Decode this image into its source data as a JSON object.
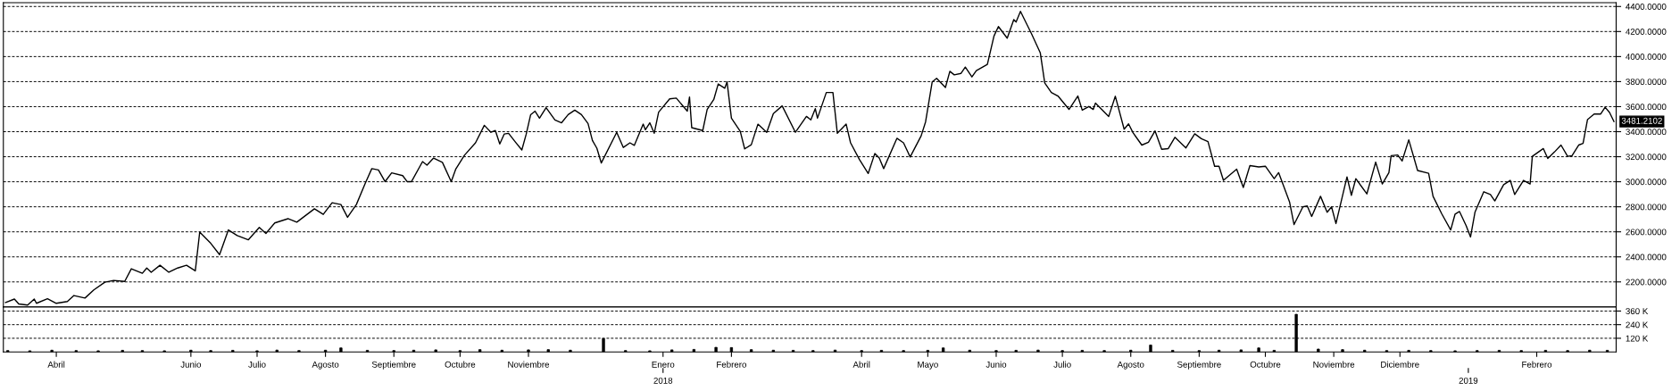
{
  "chart_data": [
    {
      "type": "line",
      "grid": "y",
      "tick_labels": "y",
      "line_style": "solid",
      "x": [
        "2017-03-09",
        "2017-03-13",
        "2017-03-15",
        "2017-03-19",
        "2017-03-22",
        "2017-03-23",
        "2017-03-28",
        "2017-04-01",
        "2017-04-06",
        "2017-04-09",
        "2017-04-14",
        "2017-04-18",
        "2017-04-23",
        "2017-04-27",
        "2017-05-02",
        "2017-05-05",
        "2017-05-10",
        "2017-05-12",
        "2017-05-14",
        "2017-05-18",
        "2017-05-22",
        "2017-05-26",
        "2017-05-30",
        "2017-06-03",
        "2017-06-05",
        "2017-06-10",
        "2017-06-14",
        "2017-06-18",
        "2017-06-22",
        "2017-06-27",
        "2017-07-02",
        "2017-07-05",
        "2017-07-09",
        "2017-07-15",
        "2017-07-19",
        "2017-07-27",
        "2017-07-31",
        "2017-08-04",
        "2017-08-08",
        "2017-08-11",
        "2017-08-15",
        "2017-08-19",
        "2017-08-22",
        "2017-08-25",
        "2017-08-28",
        "2017-08-31",
        "2017-09-05",
        "2017-09-07",
        "2017-09-09",
        "2017-09-14",
        "2017-09-16",
        "2017-09-19",
        "2017-09-23",
        "2017-09-27",
        "2017-09-29",
        "2017-10-03",
        "2017-10-08",
        "2017-10-12",
        "2017-10-15",
        "2017-10-17",
        "2017-10-19",
        "2017-10-21",
        "2017-10-23",
        "2017-10-26",
        "2017-10-29",
        "2017-10-31",
        "2017-11-02",
        "2017-11-04",
        "2017-11-06",
        "2017-11-09",
        "2017-11-13",
        "2017-11-16",
        "2017-11-19",
        "2017-11-22",
        "2017-11-25",
        "2017-11-28",
        "2017-11-30",
        "2017-12-02",
        "2017-12-04",
        "2017-12-11",
        "2017-12-14",
        "2017-12-17",
        "2017-12-19",
        "2017-12-23",
        "2017-12-24",
        "2017-12-26",
        "2017-12-28",
        "2017-12-30",
        "2018-01-04",
        "2018-01-07",
        "2018-01-12",
        "2018-01-13",
        "2018-01-14",
        "2018-01-19",
        "2018-01-21",
        "2018-01-24",
        "2018-01-26",
        "2018-01-29",
        "2018-01-30",
        "2018-02-01",
        "2018-02-05",
        "2018-02-07",
        "2018-02-10",
        "2018-02-13",
        "2018-02-17",
        "2018-02-20",
        "2018-02-24",
        "2018-03-02",
        "2018-03-07",
        "2018-03-09",
        "2018-03-11",
        "2018-03-12",
        "2018-03-16",
        "2018-03-19",
        "2018-03-21",
        "2018-03-25",
        "2018-03-27",
        "2018-03-31",
        "2018-04-04",
        "2018-04-07",
        "2018-04-09",
        "2018-04-11",
        "2018-04-17",
        "2018-04-20",
        "2018-04-23",
        "2018-04-28",
        "2018-04-30",
        "2018-05-03",
        "2018-05-05",
        "2018-05-09",
        "2018-05-11",
        "2018-05-13",
        "2018-05-16",
        "2018-05-18",
        "2018-05-21",
        "2018-05-23",
        "2018-05-28",
        "2018-05-31",
        "2018-06-02",
        "2018-06-06",
        "2018-06-09",
        "2018-06-10",
        "2018-06-12",
        "2018-06-17",
        "2018-06-21",
        "2018-06-23",
        "2018-06-26",
        "2018-06-29",
        "2018-07-04",
        "2018-07-08",
        "2018-07-10",
        "2018-07-13",
        "2018-07-15",
        "2018-07-16",
        "2018-07-22",
        "2018-07-25",
        "2018-07-29",
        "2018-07-31",
        "2018-08-02",
        "2018-08-06",
        "2018-08-09",
        "2018-08-12",
        "2018-08-15",
        "2018-08-18",
        "2018-08-21",
        "2018-08-26",
        "2018-08-30",
        "2018-09-02",
        "2018-09-05",
        "2018-09-08",
        "2018-09-10",
        "2018-09-12",
        "2018-09-18",
        "2018-09-21",
        "2018-09-24",
        "2018-09-28",
        "2018-10-01",
        "2018-10-05",
        "2018-10-07",
        "2018-10-12",
        "2018-10-14",
        "2018-10-18",
        "2018-10-20",
        "2018-10-22",
        "2018-10-26",
        "2018-10-29",
        "2018-10-31",
        "2018-11-02",
        "2018-11-07",
        "2018-11-09",
        "2018-11-11",
        "2018-11-16",
        "2018-11-20",
        "2018-11-23",
        "2018-11-26",
        "2018-11-27",
        "2018-11-30",
        "2018-12-02",
        "2018-12-05",
        "2018-12-09",
        "2018-12-14",
        "2018-12-16",
        "2018-12-20",
        "2018-12-24",
        "2018-12-26",
        "2018-12-28",
        "2018-12-31",
        "2019-01-02",
        "2019-01-04",
        "2019-01-08",
        "2019-01-11",
        "2019-01-13",
        "2019-01-17",
        "2019-01-20",
        "2019-01-22",
        "2019-01-26",
        "2019-01-29",
        "2019-01-30",
        "2019-02-04",
        "2019-02-06",
        "2019-02-09",
        "2019-02-12",
        "2019-02-15",
        "2019-02-17",
        "2019-02-20",
        "2019-02-22",
        "2019-02-24",
        "2019-02-27",
        "2019-03-02",
        "2019-03-04",
        "2019-03-06",
        "2019-03-08"
      ],
      "series": [
        {
          "color": "#000000",
          "values": [
            2035,
            2063,
            2024,
            2015,
            2063,
            2029,
            2066,
            2029,
            2043,
            2091,
            2071,
            2136,
            2198,
            2212,
            2204,
            2305,
            2269,
            2311,
            2277,
            2333,
            2277,
            2311,
            2333,
            2288,
            2598,
            2508,
            2418,
            2615,
            2570,
            2536,
            2635,
            2587,
            2671,
            2705,
            2677,
            2784,
            2739,
            2832,
            2818,
            2716,
            2818,
            2987,
            3105,
            3094,
            3001,
            3071,
            3049,
            3001,
            3001,
            3161,
            3133,
            3189,
            3155,
            3001,
            3099,
            3212,
            3311,
            3451,
            3395,
            3409,
            3302,
            3381,
            3387,
            3319,
            3254,
            3381,
            3536,
            3564,
            3508,
            3592,
            3494,
            3471,
            3536,
            3572,
            3536,
            3465,
            3330,
            3268,
            3150,
            3395,
            3274,
            3311,
            3291,
            3460,
            3415,
            3471,
            3387,
            3556,
            3662,
            3668,
            3564,
            3677,
            3432,
            3409,
            3578,
            3657,
            3781,
            3747,
            3798,
            3508,
            3403,
            3263,
            3296,
            3460,
            3395,
            3544,
            3606,
            3395,
            3522,
            3494,
            3584,
            3508,
            3713,
            3713,
            3387,
            3460,
            3311,
            3178,
            3066,
            3226,
            3189,
            3105,
            3347,
            3311,
            3198,
            3367,
            3479,
            3798,
            3826,
            3753,
            3882,
            3854,
            3865,
            3916,
            3837,
            3888,
            3938,
            4164,
            4240,
            4147,
            4296,
            4276,
            4361,
            4183,
            4029,
            3789,
            3713,
            3685,
            3578,
            3685,
            3572,
            3601,
            3578,
            3629,
            3522,
            3683,
            3420,
            3462,
            3392,
            3293,
            3316,
            3406,
            3259,
            3265,
            3355,
            3270,
            3383,
            3344,
            3321,
            3124,
            3124,
            3011,
            3101,
            2954,
            3129,
            3118,
            3124,
            3025,
            3073,
            2836,
            2658,
            2799,
            2807,
            2723,
            2884,
            2756,
            2799,
            2666,
            3039,
            2892,
            3025,
            2903,
            3157,
            2982,
            3073,
            3208,
            3214,
            3166,
            3335,
            3090,
            3067,
            2884,
            2742,
            2615,
            2742,
            2762,
            2649,
            2559,
            2756,
            2920,
            2898,
            2847,
            2977,
            3011,
            2898,
            3011,
            2982,
            3203,
            3265,
            3186,
            3237,
            3293,
            3203,
            3208,
            3293,
            3307,
            3496,
            3541,
            3541,
            3595,
            3553,
            3481
          ]
        }
      ],
      "xlim": [
        "2017-03-08",
        "2019-03-09"
      ],
      "ylim": [
        2000,
        4430
      ],
      "yticks": [
        {
          "value": 2200,
          "label": "2200.0000"
        },
        {
          "value": 2400,
          "label": "2400.0000"
        },
        {
          "value": 2600,
          "label": "2600.0000"
        },
        {
          "value": 2800,
          "label": "2800.0000"
        },
        {
          "value": 3000,
          "label": "3000.0000"
        },
        {
          "value": 3200,
          "label": "3200.0000"
        },
        {
          "value": 3400,
          "label": "3400.0000"
        },
        {
          "value": 3600,
          "label": "3600.0000"
        },
        {
          "value": 3800,
          "label": "3800.0000"
        },
        {
          "value": 4000,
          "label": "4000.0000"
        },
        {
          "value": 4200,
          "label": "4200.0000"
        },
        {
          "value": 4400,
          "label": "4400.0000"
        }
      ],
      "annotations": [
        {
          "text": "3481.2102",
          "x": "2019-03-08",
          "y": 3481.2102
        }
      ]
    },
    {
      "type": "bar",
      "grid": "y",
      "x": [
        "2017-03-10",
        "2017-03-20",
        "2017-03-30",
        "2017-04-10",
        "2017-04-20",
        "2017-05-01",
        "2017-05-10",
        "2017-05-20",
        "2017-06-01",
        "2017-06-10",
        "2017-06-20",
        "2017-07-01",
        "2017-07-10",
        "2017-07-20",
        "2017-08-01",
        "2017-08-08",
        "2017-08-20",
        "2017-09-01",
        "2017-09-10",
        "2017-09-20",
        "2017-10-01",
        "2017-10-10",
        "2017-10-20",
        "2017-11-01",
        "2017-11-10",
        "2017-11-20",
        "2017-12-05",
        "2017-12-15",
        "2017-12-26",
        "2018-01-05",
        "2018-01-15",
        "2018-01-25",
        "2018-02-01",
        "2018-02-10",
        "2018-02-20",
        "2018-03-01",
        "2018-03-10",
        "2018-03-20",
        "2018-04-01",
        "2018-04-10",
        "2018-04-20",
        "2018-05-01",
        "2018-05-08",
        "2018-05-20",
        "2018-06-01",
        "2018-06-10",
        "2018-06-20",
        "2018-07-01",
        "2018-07-10",
        "2018-07-20",
        "2018-08-01",
        "2018-08-10",
        "2018-08-20",
        "2018-09-01",
        "2018-09-10",
        "2018-09-20",
        "2018-09-28",
        "2018-10-05",
        "2018-10-15",
        "2018-10-25",
        "2018-11-05",
        "2018-11-15",
        "2018-11-25",
        "2018-12-05",
        "2018-12-15",
        "2018-12-26",
        "2019-01-05",
        "2019-01-15",
        "2019-01-25",
        "2019-02-05",
        "2019-02-15",
        "2019-02-25",
        "2019-03-05"
      ],
      "series": [
        {
          "color": "#000000",
          "values": [
            12000,
            10000,
            15000,
            12000,
            10000,
            14000,
            12000,
            10000,
            15000,
            12000,
            14000,
            10000,
            16000,
            12000,
            15000,
            35000,
            14000,
            12000,
            15000,
            18000,
            12000,
            20000,
            15000,
            18000,
            20000,
            15000,
            117000,
            12000,
            10000,
            18000,
            22000,
            40000,
            38000,
            20000,
            15000,
            14000,
            12000,
            16000,
            12000,
            14000,
            12000,
            14000,
            35000,
            15000,
            12000,
            14000,
            16000,
            12000,
            14000,
            12000,
            15000,
            60000,
            14000,
            12000,
            15000,
            18000,
            35000,
            14000,
            331000,
            25000,
            20000,
            15000,
            12000,
            14000,
            12000,
            10000,
            12000,
            14000,
            12000,
            14000,
            12000,
            15000,
            14000
          ]
        }
      ],
      "xlim": [
        "2017-03-08",
        "2019-03-09"
      ],
      "ylim": [
        0,
        396000
      ],
      "x2lim": [
        "2017-03-08",
        "2019-03-09"
      ],
      "x2ticks": [
        {
          "value": "2018-01-01",
          "label": "2018"
        },
        {
          "value": "2019-01-01",
          "label": "2019"
        }
      ],
      "yticks": [
        {
          "value": 120000,
          "label": "120 K"
        },
        {
          "value": 240000,
          "label": "240 K"
        },
        {
          "value": 360000,
          "label": "360 K"
        }
      ],
      "xticks": [
        {
          "value": "2017-04-01",
          "label": "Abril"
        },
        {
          "value": "2017-06-01",
          "label": "Junio"
        },
        {
          "value": "2017-07-01",
          "label": "Julio"
        },
        {
          "value": "2017-08-01",
          "label": "Agosto"
        },
        {
          "value": "2017-09-01",
          "label": "Septiembre"
        },
        {
          "value": "2017-10-01",
          "label": "Octubre"
        },
        {
          "value": "2017-11-01",
          "label": "Noviembre"
        },
        {
          "value": "2018-01-01",
          "label": "Enero"
        },
        {
          "value": "2018-02-01",
          "label": "Febrero"
        },
        {
          "value": "2018-04-01",
          "label": "Abril"
        },
        {
          "value": "2018-05-01",
          "label": "Mayo"
        },
        {
          "value": "2018-06-01",
          "label": "Junio"
        },
        {
          "value": "2018-07-01",
          "label": "Julio"
        },
        {
          "value": "2018-08-01",
          "label": "Agosto"
        },
        {
          "value": "2018-09-01",
          "label": "Septiembre"
        },
        {
          "value": "2018-10-01",
          "label": "Octubre"
        },
        {
          "value": "2018-11-01",
          "label": "Noviembre"
        },
        {
          "value": "2018-12-01",
          "label": "Diciembre"
        },
        {
          "value": "2019-02-01",
          "label": "Febrero"
        }
      ]
    }
  ]
}
